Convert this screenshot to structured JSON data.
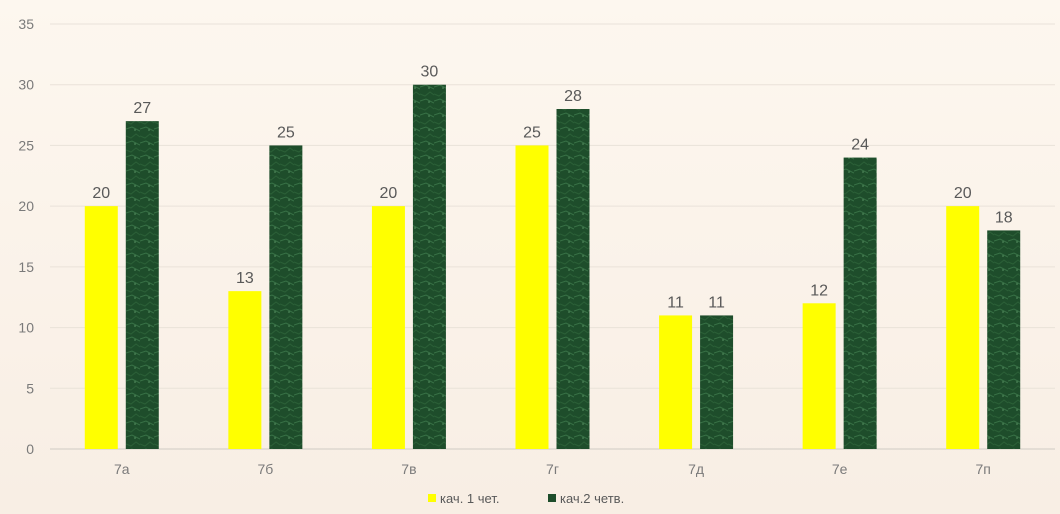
{
  "chart_data": {
    "type": "bar",
    "categories": [
      "7а",
      "7б",
      "7в",
      "7г",
      "7д",
      "7е",
      "7п"
    ],
    "series": [
      {
        "name": "кач. 1 чет.",
        "values": [
          20,
          13,
          20,
          25,
          11,
          12,
          20
        ],
        "color": "#ffff00"
      },
      {
        "name": "кач.2 четв.",
        "values": [
          27,
          25,
          30,
          28,
          11,
          24,
          18
        ],
        "color": "#1e4d2b"
      }
    ],
    "ylim": [
      0,
      35
    ],
    "yticks": [
      0,
      5,
      10,
      15,
      20,
      25,
      30,
      35
    ],
    "grid": true,
    "legend_position": "bottom",
    "data_labels": true,
    "title": "",
    "xlabel": "",
    "ylabel": ""
  }
}
